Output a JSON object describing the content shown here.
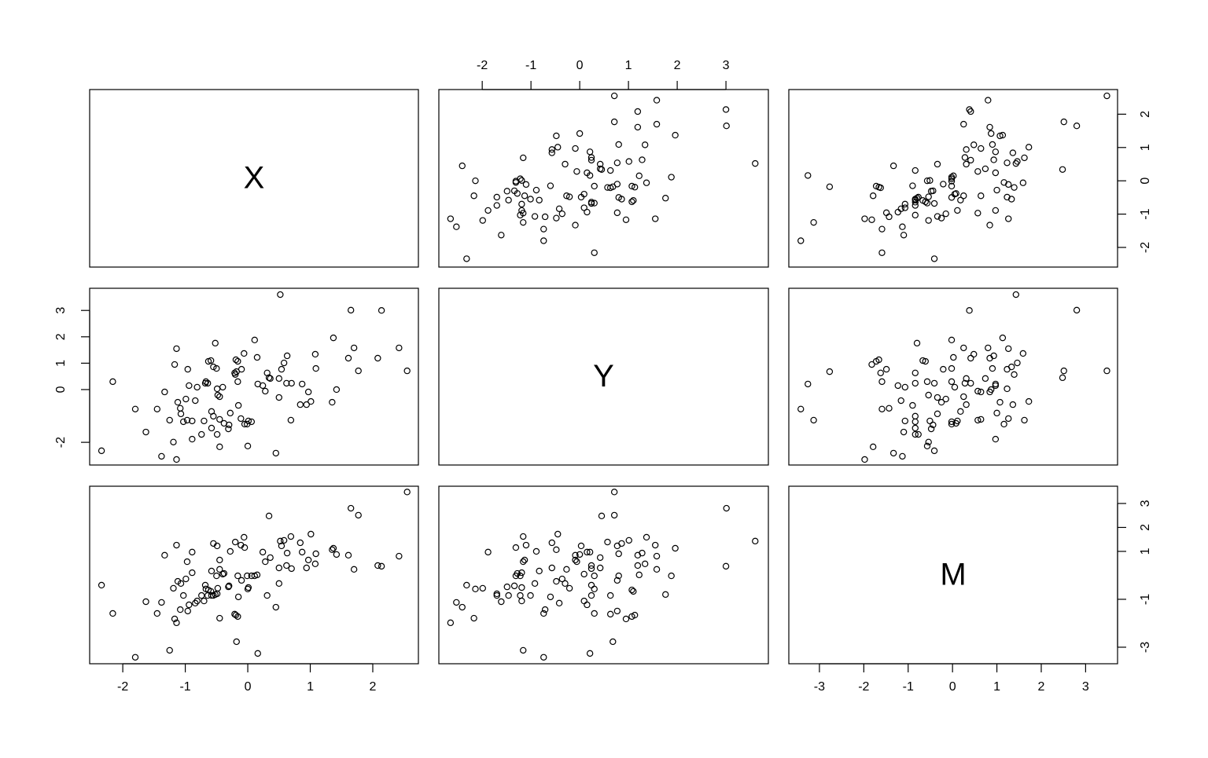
{
  "chart_data": {
    "type": "scatter-matrix",
    "variables": [
      {
        "name": "X",
        "xlim": [
          -2.53,
          2.73
        ],
        "ylim": [
          -2.59,
          2.74
        ],
        "xticks": [
          -2,
          -1,
          0,
          1,
          2
        ],
        "yticks": [
          -2,
          -1,
          0,
          1,
          2
        ],
        "values": [
          -2.34,
          -2.16,
          -1.8,
          -1.63,
          -1.45,
          -1.38,
          -1.33,
          -1.25,
          -1.19,
          -1.17,
          -1.14,
          -1.14,
          -1.12,
          -1.08,
          -1.07,
          -1.03,
          -0.99,
          -0.97,
          -0.96,
          -0.94,
          -0.89,
          -0.89,
          -0.84,
          -0.81,
          -0.74,
          -0.7,
          -0.68,
          -0.67,
          -0.64,
          -0.63,
          -0.59,
          -0.58,
          -0.58,
          -0.55,
          -0.55,
          -0.52,
          -0.5,
          -0.49,
          -0.49,
          -0.48,
          -0.45,
          -0.45,
          -0.45,
          -0.4,
          -0.38,
          -0.31,
          -0.3,
          -0.28,
          -0.21,
          -0.2,
          -0.19,
          -0.18,
          -0.16,
          -0.16,
          -0.15,
          -0.11,
          -0.1,
          -0.06,
          -0.05,
          -0.01,
          0.0,
          0.01,
          0.06,
          0.11,
          0.15,
          0.16,
          0.24,
          0.28,
          0.31,
          0.34,
          0.36,
          0.45,
          0.5,
          0.5,
          0.52,
          0.54,
          0.58,
          0.62,
          0.63,
          0.69,
          0.7,
          0.84,
          0.87,
          0.94,
          0.97,
          1.01,
          1.08,
          1.09,
          1.35,
          1.37,
          1.42,
          1.61,
          1.65,
          1.7,
          1.77,
          2.08,
          2.14,
          2.42,
          2.55
        ]
      },
      {
        "name": "Y",
        "xlim": [
          -2.89,
          3.87
        ],
        "ylim": [
          -2.86,
          3.84
        ],
        "xticks": [
          -2,
          -1,
          0,
          1,
          2,
          3
        ],
        "yticks": [
          -2,
          0,
          1,
          2,
          3
        ],
        "values": [
          -2.32,
          0.3,
          -0.74,
          -1.61,
          -0.74,
          -2.53,
          -0.09,
          -1.16,
          -1.99,
          0.95,
          1.55,
          -2.65,
          -0.48,
          -0.71,
          -0.92,
          -1.22,
          -0.36,
          -1.16,
          0.77,
          0.15,
          -1.88,
          -1.19,
          -0.42,
          0.09,
          -1.7,
          -1.19,
          0.24,
          0.3,
          0.24,
          1.07,
          1.1,
          -0.83,
          -1.46,
          0.86,
          -1.01,
          1.76,
          0.8,
          0.03,
          -1.7,
          -0.21,
          -2.17,
          -0.27,
          -1.13,
          0.09,
          -1.28,
          -1.49,
          -1.34,
          -0.89,
          0.63,
          0.57,
          1.13,
          0.68,
          1.07,
          0.3,
          -0.6,
          -1.1,
          0.77,
          1.37,
          -1.31,
          -1.31,
          -2.14,
          -1.19,
          -1.22,
          1.88,
          1.22,
          0.21,
          0.15,
          -0.06,
          0.63,
          0.45,
          0.42,
          -2.41,
          -0.3,
          0.42,
          3.6,
          0.77,
          1.01,
          0.24,
          1.28,
          -1.16,
          0.24,
          -0.57,
          0.21,
          -0.57,
          -0.09,
          -0.45,
          1.34,
          0.8,
          -0.48,
          1.96,
          0.0,
          1.19,
          3.01,
          1.58,
          0.71,
          1.19,
          3.0,
          1.58,
          0.71
        ]
      },
      {
        "name": "M",
        "xlim": [
          -3.69,
          3.72
        ],
        "ylim": [
          -3.69,
          3.72
        ],
        "xticks": [
          -3,
          -2,
          -1,
          0,
          1,
          2,
          3
        ],
        "yticks": [
          -3,
          -1,
          1,
          2,
          3
        ],
        "values": [
          -0.41,
          -1.59,
          -3.42,
          -1.1,
          -1.59,
          -1.13,
          0.84,
          -3.13,
          -0.54,
          -1.82,
          1.26,
          -1.98,
          -0.25,
          -1.43,
          -0.34,
          -0.84,
          -0.15,
          0.57,
          -1.49,
          -1.23,
          0.97,
          0.11,
          -1.16,
          -1.07,
          -0.84,
          -1.07,
          -0.41,
          -0.57,
          -0.84,
          -0.61,
          -0.67,
          0.18,
          -0.84,
          1.33,
          -0.84,
          -0.8,
          -0.02,
          1.23,
          -0.77,
          -0.54,
          -1.79,
          0.25,
          0.64,
          0.05,
          0.08,
          -0.48,
          -0.44,
          1.0,
          -1.62,
          1.39,
          -1.66,
          -2.77,
          -1.72,
          -0.02,
          -0.9,
          1.26,
          -0.21,
          1.59,
          1.16,
          -0.02,
          -0.57,
          -0.51,
          -0.02,
          -0.02,
          0.02,
          -3.26,
          0.97,
          0.57,
          -0.84,
          2.48,
          0.74,
          -1.33,
          -0.34,
          0.31,
          1.43,
          1.23,
          1.46,
          0.41,
          0.93,
          1.62,
          0.28,
          1.36,
          0.97,
          0.31,
          0.64,
          1.72,
          0.48,
          0.9,
          1.07,
          1.13,
          0.87,
          0.84,
          2.8,
          0.25,
          2.51,
          0.41,
          0.38,
          0.8,
          3.48
        ]
      }
    ]
  }
}
